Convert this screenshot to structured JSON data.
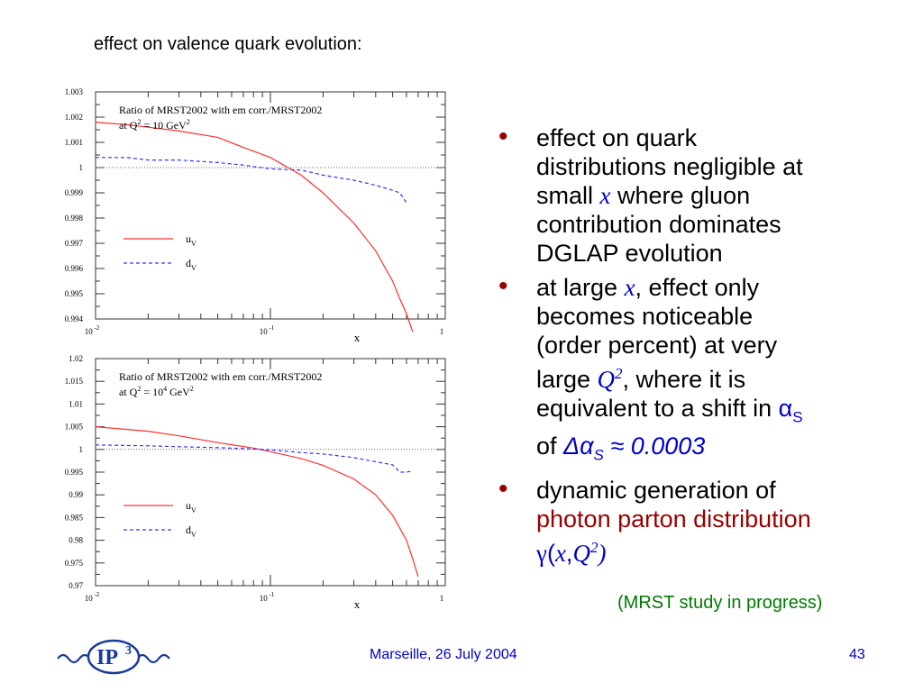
{
  "slide_title": "effect on valence quark evolution:",
  "bullets": {
    "b1": {
      "l1": "effect on quark",
      "l2": "distributions negligible at",
      "l3_pre": "small ",
      "l3_var": "x",
      "l3_post": " where gluon",
      "l4": "contribution dominates",
      "l5": "DGLAP evolution"
    },
    "b2": {
      "l1_pre": "at large ",
      "l1_var": "x",
      "l1_post": ", effect only",
      "l2": "becomes noticeable",
      "l3": "(order percent) at very",
      "l4_pre": "large ",
      "l4_var": "Q",
      "l4_sup": "2",
      "l4_post": ", where it is",
      "l5_pre": "equivalent to a shift in ",
      "l5_sym": "α",
      "l5_sub": "S",
      "l6_pre": "of ",
      "l6_delta": "Δα",
      "l6_sub": "S",
      "l6_val": " ≈ 0.0003"
    },
    "b3": {
      "l1": "dynamic generation of",
      "l2": "photon parton distribution",
      "l3_gamma": "γ",
      "l3_args_open": "(",
      "l3_x": "x",
      "l3_comma": ",",
      "l3_q": "Q",
      "l3_sup": "2",
      "l3_close": ")"
    }
  },
  "bullet_marker": "•",
  "note": "(MRST study in progress)",
  "footer": {
    "center": "Marseille, 26 July 2004",
    "page": "43"
  },
  "logo": {
    "icon": "ip3-logo",
    "text": "IP",
    "sup": "3"
  },
  "colors": {
    "red_curve": "#ff3030",
    "blue_curve": "#3333ff",
    "highlight": "#990000",
    "accent": "#0000cc",
    "note": "#007a00"
  },
  "chart_data": [
    {
      "type": "line",
      "title_line1": "Ratio of MRST2002 with em corr./MRST2002",
      "title_line2_pre": "at Q",
      "title_line2_sup": "2",
      "title_line2_mid": " = 10 GeV",
      "title_line2_sup2": "2",
      "xlabel": "x",
      "x_scale": "log",
      "xlim": [
        0.01,
        1
      ],
      "ylim": [
        0.994,
        1.003
      ],
      "yticks": [
        1.003,
        1.002,
        1.001,
        1,
        0.999,
        0.998,
        0.997,
        0.996,
        0.995,
        0.994
      ],
      "ytick_labels": [
        "1.003",
        "1.002",
        "1.001",
        "1",
        "0.999",
        "0.998",
        "0.997",
        "0.996",
        "0.995",
        "0.994"
      ],
      "xtick_labels": [
        {
          "base": "10",
          "exp": "-2"
        },
        {
          "base": "10",
          "exp": "-1"
        },
        {
          "base": "1",
          "exp": ""
        }
      ],
      "reference_line": 1,
      "legend": [
        {
          "label": "u",
          "sub": "V",
          "style": "solid"
        },
        {
          "label": "d",
          "sub": "V",
          "style": "dashed"
        }
      ],
      "series": [
        {
          "name": "u_V",
          "x": [
            0.01,
            0.015,
            0.02,
            0.03,
            0.05,
            0.07,
            0.1,
            0.15,
            0.2,
            0.3,
            0.4,
            0.5,
            0.55,
            0.6,
            0.65
          ],
          "values": [
            1.0018,
            1.0017,
            1.0016,
            1.00145,
            1.0012,
            1.0008,
            1.0004,
            0.9997,
            0.999,
            0.9978,
            0.9967,
            0.9955,
            0.9948,
            0.9942,
            0.9935
          ]
        },
        {
          "name": "d_V",
          "x": [
            0.01,
            0.015,
            0.02,
            0.03,
            0.05,
            0.07,
            0.1,
            0.15,
            0.2,
            0.3,
            0.4,
            0.5,
            0.55,
            0.6
          ],
          "values": [
            1.0004,
            1.0004,
            1.0003,
            1.0003,
            1.0002,
            1.0001,
            0.99995,
            0.9999,
            0.9997,
            0.9995,
            0.9993,
            0.9991,
            0.999,
            0.9986
          ]
        }
      ]
    },
    {
      "type": "line",
      "title_line1": "Ratio of MRST2002 with em corr./MRST2002",
      "title_line2_pre": "at Q",
      "title_line2_sup": "2",
      "title_line2_mid": " = 10",
      "title_line2_sup2": "4",
      "title_line2_post": " GeV",
      "title_line2_sup3": "2",
      "xlabel": "x",
      "x_scale": "log",
      "xlim": [
        0.01,
        1
      ],
      "ylim": [
        0.97,
        1.02
      ],
      "yticks": [
        1.02,
        1.015,
        1.01,
        1.005,
        1,
        0.995,
        0.99,
        0.985,
        0.98,
        0.975,
        0.97
      ],
      "ytick_labels": [
        "1.02",
        "1.015",
        "1.01",
        "1.005",
        "1",
        "0.995",
        "0.99",
        "0.985",
        "0.98",
        "0.975",
        "0.97"
      ],
      "xtick_labels": [
        {
          "base": "10",
          "exp": "-2"
        },
        {
          "base": "10",
          "exp": "-1"
        },
        {
          "base": "1",
          "exp": ""
        }
      ],
      "reference_line": 1,
      "legend": [
        {
          "label": "u",
          "sub": "V",
          "style": "solid"
        },
        {
          "label": "d",
          "sub": "V",
          "style": "dashed"
        }
      ],
      "series": [
        {
          "name": "u_V",
          "x": [
            0.01,
            0.02,
            0.03,
            0.05,
            0.08,
            0.1,
            0.15,
            0.2,
            0.3,
            0.4,
            0.5,
            0.6,
            0.65,
            0.7
          ],
          "values": [
            1.005,
            1.004,
            1.003,
            1.0015,
            1.0003,
            0.9995,
            0.998,
            0.9965,
            0.9935,
            0.99,
            0.9855,
            0.98,
            0.976,
            0.972
          ]
        },
        {
          "name": "d_V",
          "x": [
            0.01,
            0.02,
            0.03,
            0.05,
            0.08,
            0.1,
            0.15,
            0.2,
            0.3,
            0.4,
            0.5,
            0.55,
            0.6,
            0.65
          ],
          "values": [
            1.001,
            1.0008,
            1.0006,
            1.0004,
            1.0001,
            0.9999,
            0.9993,
            0.999,
            0.9982,
            0.9973,
            0.9966,
            0.995,
            0.995,
            0.9953
          ]
        }
      ]
    }
  ]
}
